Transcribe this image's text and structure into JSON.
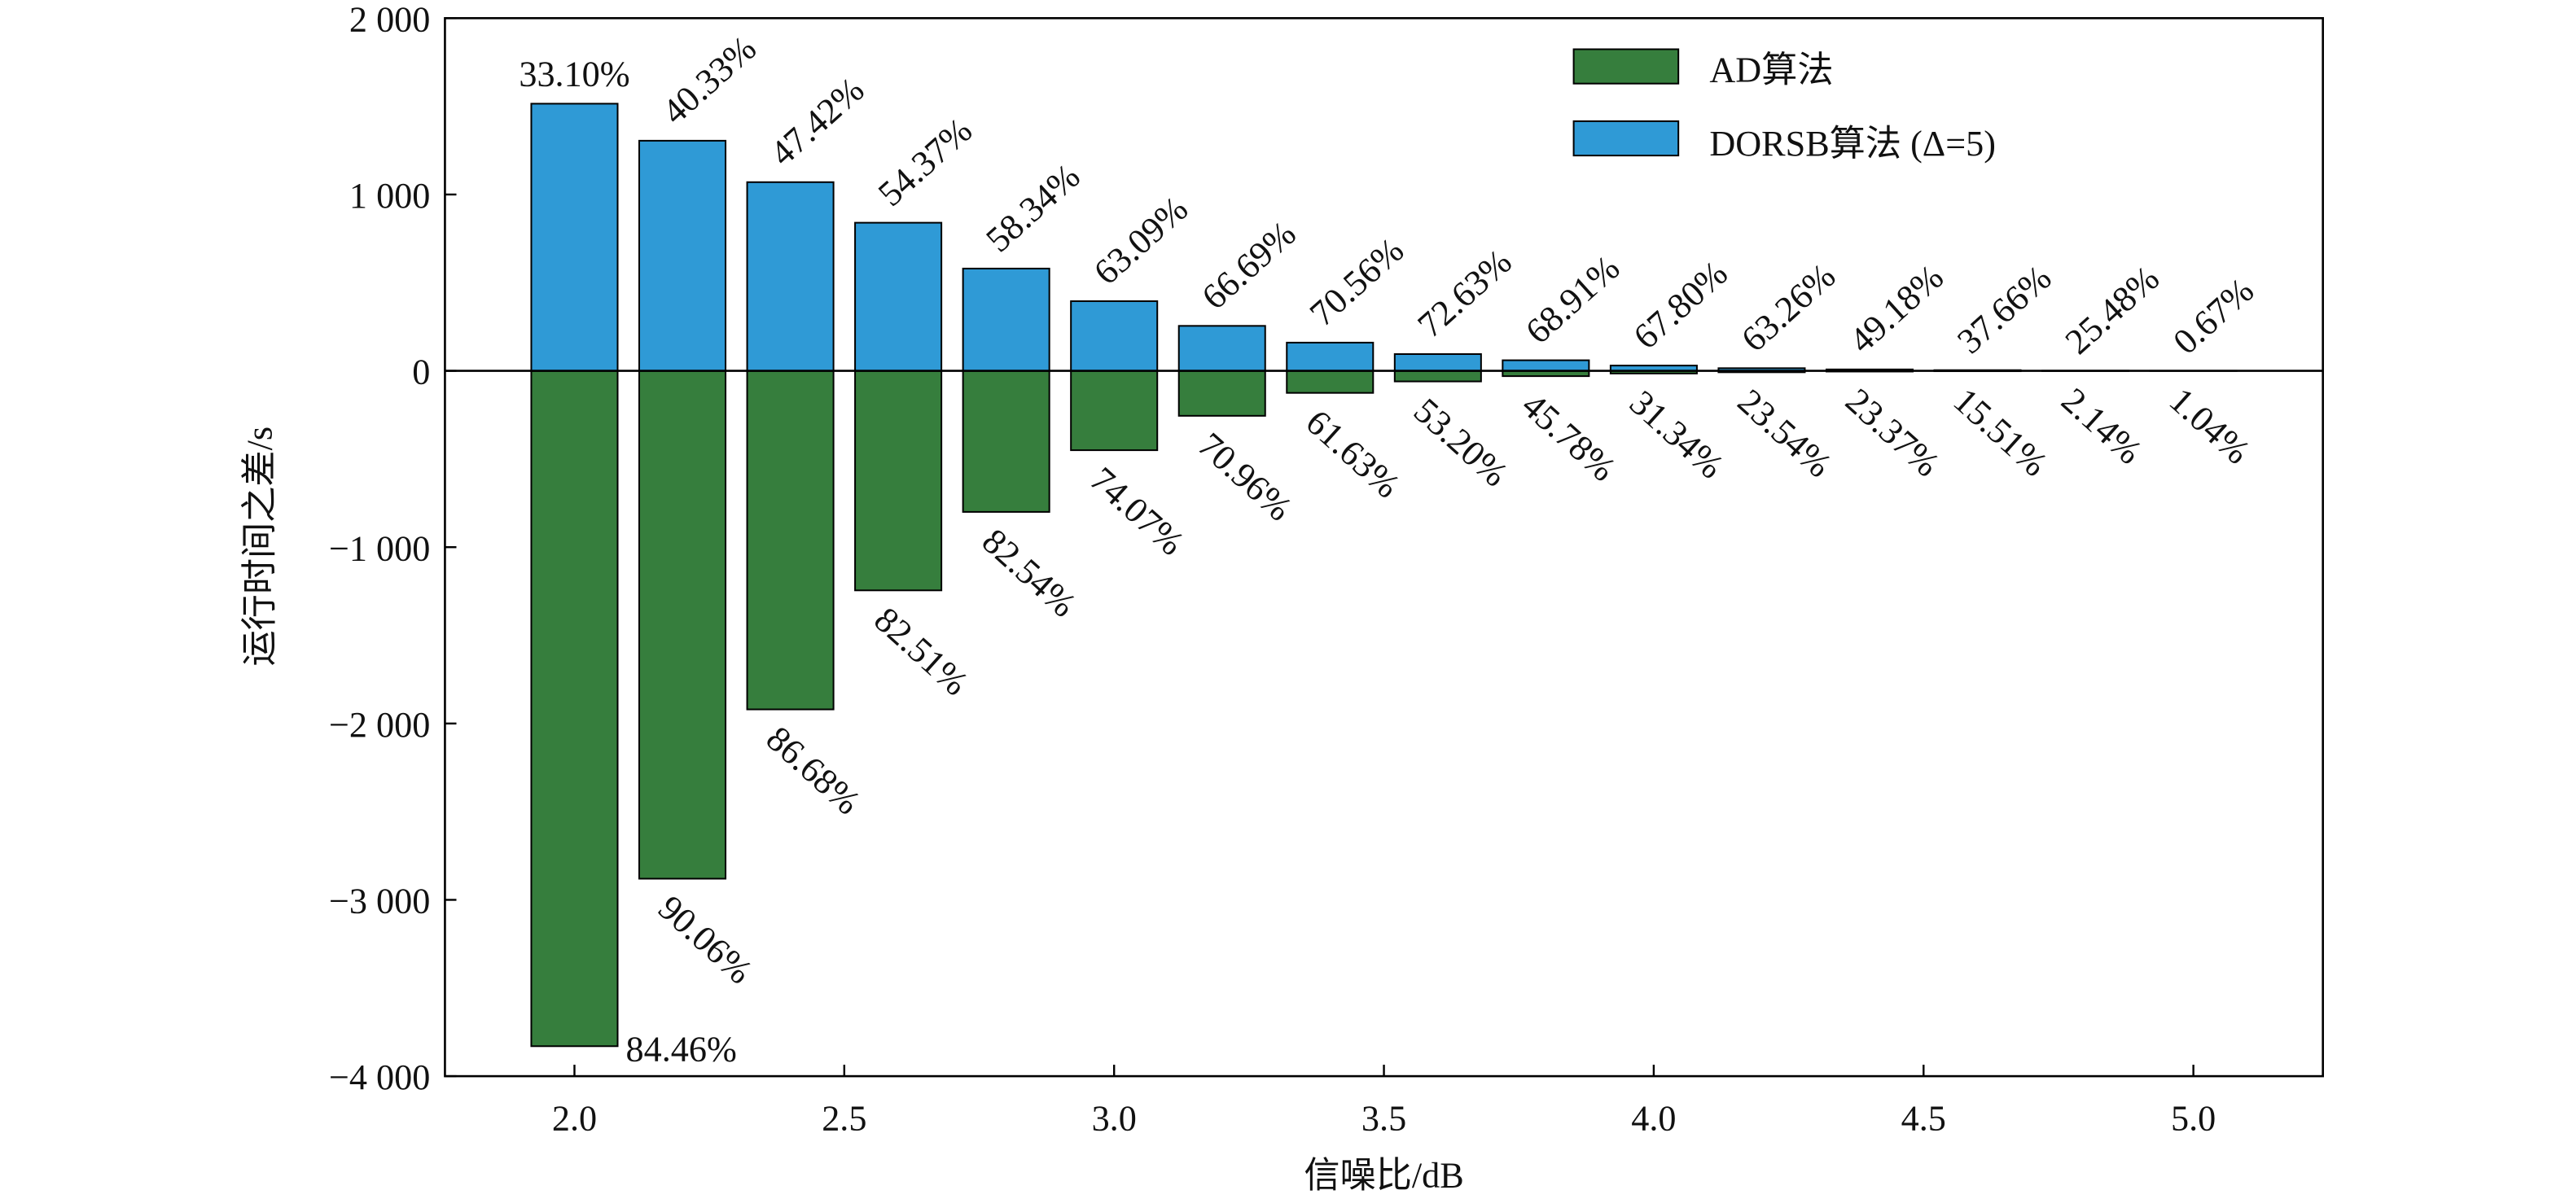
{
  "chart_data": {
    "type": "bar",
    "x": [
      2.0,
      2.2,
      2.4,
      2.6,
      2.8,
      3.0,
      3.2,
      3.4,
      3.6,
      3.8,
      4.0,
      4.2,
      4.4,
      4.6,
      4.8,
      5.0
    ],
    "series": [
      {
        "name": "AD算法",
        "color": "#367e3d",
        "values": [
          -3830,
          -2880,
          -1920,
          -1245,
          -800,
          -450,
          -255,
          -125,
          -60,
          -30,
          -15,
          -8,
          -4,
          -2,
          -1,
          -0.5
        ],
        "labels": [
          "84.46%",
          "90.06%",
          "86.68%",
          "82.51%",
          "82.54%",
          "74.07%",
          "70.96%",
          "61.63%",
          "53.20%",
          "45.78%",
          "31.34%",
          "23.54%",
          "23.37%",
          "15.51%",
          "2.14%",
          "1.04%"
        ]
      },
      {
        "name": "DORSB算法 (Δ=5)",
        "color": "#2f9ad6",
        "values": [
          1515,
          1305,
          1070,
          840,
          580,
          395,
          255,
          160,
          95,
          60,
          30,
          15,
          8,
          4,
          1,
          0.5
        ],
        "labels": [
          "33.10%",
          "40.33%",
          "47.42%",
          "54.37%",
          "58.34%",
          "63.09%",
          "66.69%",
          "70.56%",
          "72.63%",
          "68.91%",
          "67.80%",
          "63.26%",
          "49.18%",
          "37.66%",
          "25.48%",
          "0.67%"
        ]
      }
    ],
    "title": "",
    "xlabel": "信噪比/dB",
    "ylabel": "运行时间之差/s",
    "xlim": [
      1.76,
      5.24
    ],
    "ylim": [
      -4000,
      2000
    ],
    "xticks": [
      2.0,
      2.5,
      3.0,
      3.5,
      4.0,
      4.5,
      5.0
    ],
    "xtick_labels": [
      "2.0",
      "2.5",
      "3.0",
      "3.5",
      "4.0",
      "4.5",
      "5.0"
    ],
    "yticks": [
      2000,
      1000,
      0,
      -1000,
      -2000,
      -3000,
      -4000
    ],
    "ytick_labels": [
      "2 000",
      "1 000",
      "0",
      "−1 000",
      "−2 000",
      "−3 000",
      "−4 000"
    ],
    "grid": false,
    "legend": "top-right",
    "zero_line": true
  }
}
